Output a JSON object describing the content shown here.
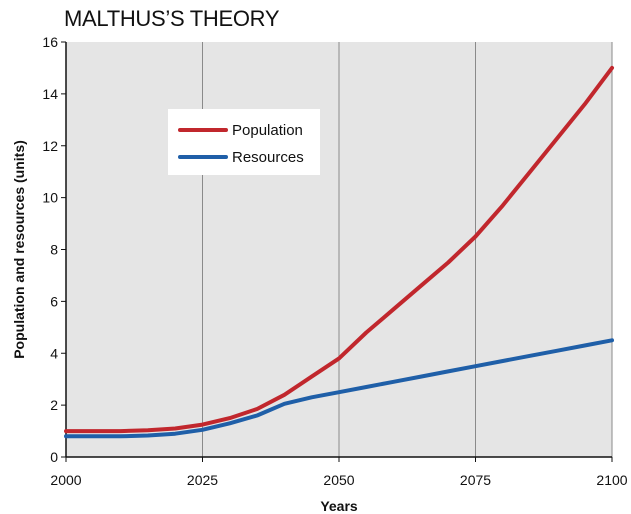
{
  "chart_data": {
    "type": "line",
    "title": "MALTHUS’S THEORY",
    "xlabel": "Years",
    "ylabel": "Population and resources (units)",
    "xlim": [
      2000,
      2100
    ],
    "ylim": [
      0,
      16
    ],
    "x_ticks": [
      2000,
      2025,
      2050,
      2075,
      2100
    ],
    "y_ticks": [
      0,
      2,
      4,
      6,
      8,
      10,
      12,
      14,
      16
    ],
    "grid": "vertical at x ticks",
    "legend_position": "upper-left",
    "series": [
      {
        "name": "Population",
        "color": "#c1272d",
        "x": [
          2000,
          2005,
          2010,
          2015,
          2020,
          2025,
          2030,
          2035,
          2040,
          2045,
          2050,
          2055,
          2060,
          2065,
          2070,
          2075,
          2080,
          2085,
          2090,
          2095,
          2100
        ],
        "y": [
          1.0,
          1.0,
          1.0,
          1.03,
          1.1,
          1.25,
          1.5,
          1.85,
          2.4,
          3.1,
          3.8,
          4.8,
          5.7,
          6.6,
          7.5,
          8.5,
          9.7,
          11.0,
          12.3,
          13.6,
          15.0
        ]
      },
      {
        "name": "Resources",
        "color": "#1f5fa8",
        "x": [
          2000,
          2005,
          2010,
          2015,
          2020,
          2025,
          2030,
          2035,
          2040,
          2045,
          2050,
          2055,
          2060,
          2065,
          2070,
          2075,
          2080,
          2085,
          2090,
          2095,
          2100
        ],
        "y": [
          0.8,
          0.8,
          0.8,
          0.83,
          0.9,
          1.05,
          1.3,
          1.6,
          2.05,
          2.3,
          2.5,
          2.7,
          2.9,
          3.1,
          3.3,
          3.5,
          3.7,
          3.9,
          4.1,
          4.3,
          4.5
        ]
      }
    ]
  }
}
